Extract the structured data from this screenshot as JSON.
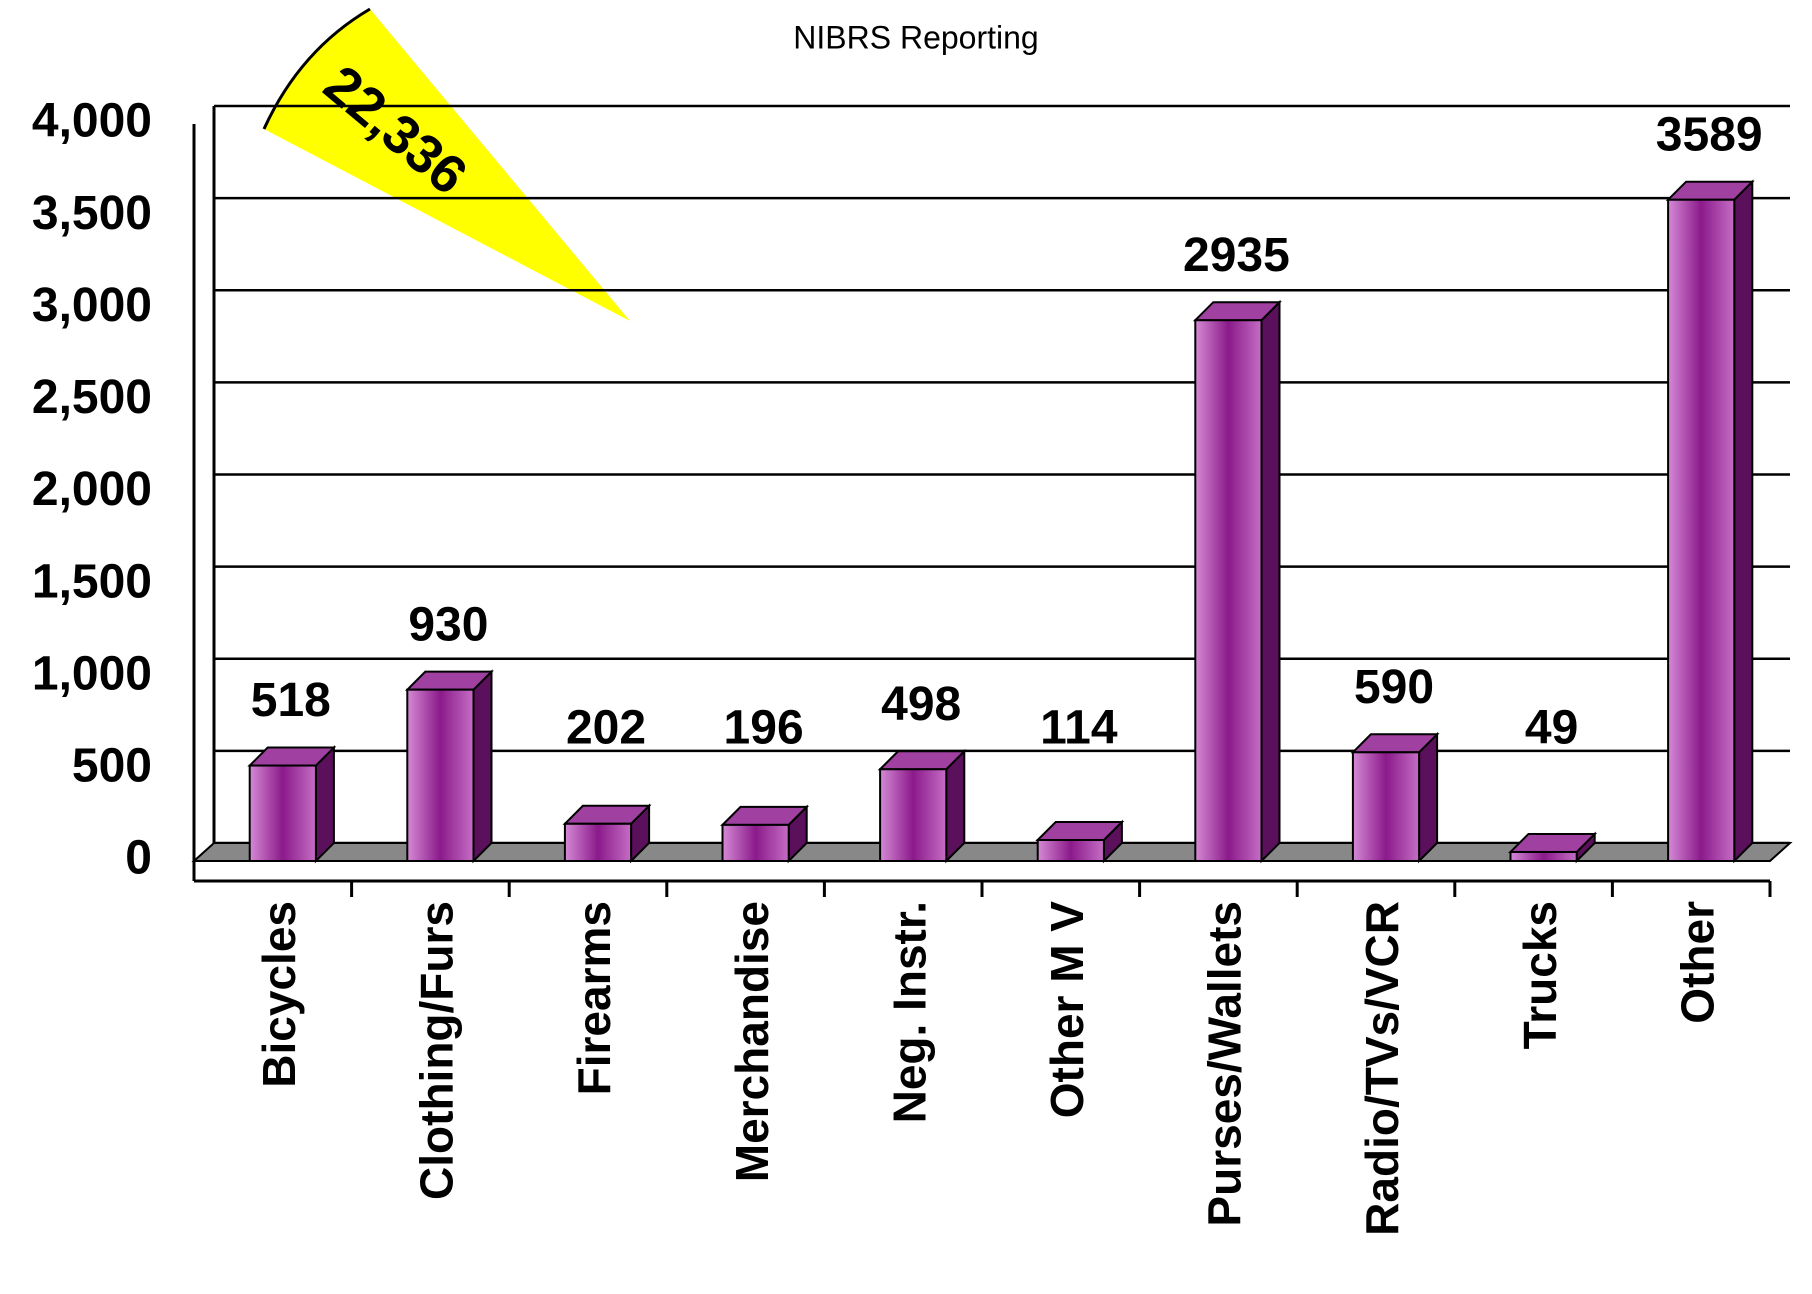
{
  "chart_data": {
    "type": "bar",
    "subtitle": "NIBRS Reporting",
    "annotation": "22,336",
    "categories": [
      "Bicycles",
      "Clothing/Furs",
      "Firearms",
      "Merchandise",
      "Neg. Instr.",
      "Other M V",
      "Purses/Wallets",
      "Radio/TVs/VCR",
      "Trucks",
      "Other"
    ],
    "values": [
      518,
      930,
      202,
      196,
      498,
      114,
      2935,
      590,
      49,
      3589
    ],
    "color": "#8b1a8b",
    "ylim": [
      0,
      4000
    ],
    "yticks": [
      0,
      500,
      {
        "value": 1000,
        "label": "1,000"
      },
      {
        "value": 1500,
        "label": "1,500"
      },
      {
        "value": 2000,
        "label": "2,000"
      },
      {
        "value": 2500,
        "label": "2,500"
      },
      {
        "value": 3000,
        "label": "3,000"
      },
      {
        "value": 3500,
        "label": "3,500"
      },
      {
        "value": 4000,
        "label": "4,000"
      }
    ],
    "grid": true
  }
}
